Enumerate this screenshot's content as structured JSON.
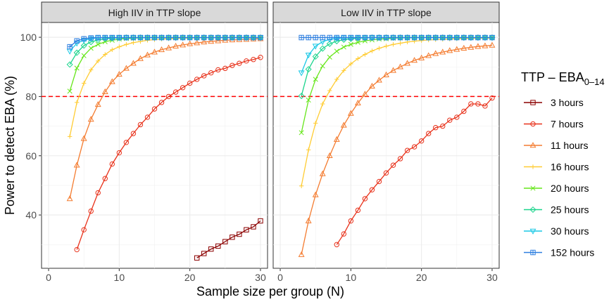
{
  "chart_data": {
    "type": "line",
    "ylabel": "Power to detect EBA (%)",
    "xlabel": "Sample size per group (N)",
    "xlim": [
      -1,
      31
    ],
    "ylim": [
      22,
      105
    ],
    "xticks": [
      0,
      10,
      20,
      30
    ],
    "xtick_labels": [
      "0",
      "10",
      "20",
      "30"
    ],
    "yticks": [
      40,
      60,
      80,
      100
    ],
    "ytick_labels": [
      "40",
      "60",
      "80",
      "100"
    ],
    "reference_line": {
      "y": 80,
      "color": "#ff0000",
      "style": "dashed"
    },
    "legend": {
      "title_main": "TTP – EBA",
      "title_sub": "0–14",
      "placement": "right"
    },
    "series_styles": [
      {
        "name": "3 hours",
        "color": "#8b0000",
        "marker": "square"
      },
      {
        "name": "7 hours",
        "color": "#e8311a",
        "marker": "circle"
      },
      {
        "name": "11 hours",
        "color": "#f47c30",
        "marker": "triangle"
      },
      {
        "name": "16 hours",
        "color": "#ffcc33",
        "marker": "plus"
      },
      {
        "name": "20 hours",
        "color": "#66e61a",
        "marker": "x"
      },
      {
        "name": "25 hours",
        "color": "#1ad48c",
        "marker": "diamond"
      },
      {
        "name": "30 hours",
        "color": "#1ac8e6",
        "marker": "triangle-down"
      },
      {
        "name": "152 hours",
        "color": "#2e7fe0",
        "marker": "boxplus"
      }
    ],
    "panels": [
      {
        "title": "High IIV in TTP slope",
        "series": [
          {
            "name": "3 hours",
            "x": [
              21,
              22,
              23,
              24,
              25,
              26,
              27,
              28,
              29,
              30
            ],
            "values": [
              25.5,
              27,
              28.5,
              29.5,
              31,
              32.5,
              33.5,
              35,
              36,
              38
            ]
          },
          {
            "name": "7 hours",
            "x": [
              4,
              5,
              6,
              7,
              8,
              9,
              10,
              11,
              12,
              13,
              14,
              15,
              16,
              17,
              18,
              19,
              20,
              21,
              22,
              23,
              24,
              25,
              26,
              27,
              28,
              29,
              30
            ],
            "values": [
              28.3,
              35,
              41.3,
              47.5,
              52.3,
              57.2,
              61,
              64.5,
              67.5,
              70.5,
              73,
              75.8,
              78,
              80,
              81.5,
              83,
              84.5,
              85.8,
              87,
              88,
              89,
              89.5,
              90.5,
              91.2,
              92,
              92.5,
              93.2
            ]
          },
          {
            "name": "11 hours",
            "x": [
              3,
              4,
              5,
              6,
              7,
              8,
              9,
              10,
              11,
              12,
              13,
              14,
              15,
              16,
              17,
              18,
              19,
              20,
              21,
              22,
              23,
              24,
              25,
              26,
              27,
              28,
              29,
              30
            ],
            "values": [
              45.5,
              56.8,
              65.8,
              72.3,
              77.3,
              81.6,
              85,
              87.5,
              89.5,
              91.2,
              92.8,
              94,
              95,
              95.8,
              96.4,
              97,
              97.4,
              97.8,
              98.1,
              98.4,
              98.6,
              98.8,
              99,
              99.1,
              99.2,
              99.3,
              99.4,
              99.5
            ]
          },
          {
            "name": "16 hours",
            "x": [
              3,
              4,
              5,
              6,
              7,
              8,
              9,
              10,
              11,
              12,
              13,
              14,
              15,
              16,
              17,
              18,
              19,
              20,
              21,
              22,
              23,
              24,
              25,
              26,
              27,
              28,
              29,
              30
            ],
            "values": [
              66.5,
              78,
              84.5,
              89,
              92,
              94.2,
              95.8,
              96.8,
              97.6,
              98.2,
              98.6,
              99,
              99.2,
              99.4,
              99.5,
              99.6,
              99.7,
              99.7,
              99.8,
              99.8,
              99.8,
              99.9,
              99.9,
              99.9,
              99.9,
              99.9,
              99.9,
              99.9
            ]
          },
          {
            "name": "20 hours",
            "x": [
              3,
              4,
              5,
              6,
              7,
              8,
              9,
              10,
              11,
              12,
              13,
              14,
              15,
              16,
              17,
              18,
              19,
              20,
              21,
              22,
              23,
              24,
              25,
              26,
              27,
              28,
              29,
              30
            ],
            "values": [
              81.8,
              89.6,
              93.8,
              96.3,
              97.6,
              98.5,
              99,
              99.4,
              99.6,
              99.7,
              99.8,
              99.9,
              99.9,
              99.9,
              99.9,
              99.9,
              99.9,
              99.9,
              99.9,
              99.9,
              99.9,
              99.9,
              99.9,
              99.9,
              99.9,
              99.9,
              99.9,
              99.9
            ]
          },
          {
            "name": "25 hours",
            "x": [
              3,
              4,
              5,
              6,
              7,
              8,
              9,
              10,
              11,
              12,
              13,
              14,
              15,
              16,
              17,
              18,
              19,
              20,
              21,
              22,
              23,
              24,
              25,
              26,
              27,
              28,
              29,
              30
            ],
            "values": [
              90.8,
              94.8,
              97.2,
              98.4,
              99.1,
              99.5,
              99.7,
              99.8,
              99.9,
              99.9,
              99.9,
              99.9,
              99.9,
              99.9,
              99.9,
              99.9,
              99.9,
              99.9,
              99.9,
              99.9,
              99.9,
              99.9,
              99.9,
              99.9,
              99.9,
              99.9,
              99.9,
              99.9
            ]
          },
          {
            "name": "30 hours",
            "x": [
              3,
              4,
              5,
              6,
              7,
              8,
              9,
              10,
              11,
              12,
              13,
              14,
              15,
              16,
              17,
              18,
              19,
              20,
              21,
              22,
              23,
              24,
              25,
              26,
              27,
              28,
              29,
              30
            ],
            "values": [
              95.3,
              98,
              99,
              99.5,
              99.8,
              99.9,
              99.9,
              99.9,
              99.9,
              99.9,
              99.9,
              99.9,
              99.9,
              99.9,
              99.9,
              99.9,
              99.9,
              99.9,
              99.9,
              99.9,
              99.9,
              99.9,
              99.9,
              99.9,
              99.9,
              99.9,
              99.9,
              99.9
            ]
          },
          {
            "name": "152 hours",
            "x": [
              3,
              4,
              5,
              6,
              7,
              8,
              9,
              10,
              11,
              12,
              13,
              14,
              15,
              16,
              17,
              18,
              19,
              20,
              21,
              22,
              23,
              24,
              25,
              26,
              27,
              28,
              29,
              30
            ],
            "values": [
              96.8,
              98.8,
              99.5,
              99.8,
              99.9,
              99.9,
              99.9,
              99.9,
              99.9,
              99.9,
              99.9,
              99.9,
              99.9,
              99.9,
              99.9,
              99.9,
              99.9,
              99.9,
              99.9,
              99.9,
              99.9,
              99.9,
              99.9,
              99.9,
              99.9,
              99.9,
              99.9,
              99.9
            ]
          }
        ]
      },
      {
        "title": "Low IIV in TTP slope",
        "series": [
          {
            "name": "7 hours",
            "x": [
              8,
              9,
              10,
              11,
              12,
              13,
              14,
              15,
              16,
              17,
              18,
              19,
              20,
              21,
              22,
              23,
              24,
              25,
              26,
              27,
              28,
              29,
              30
            ],
            "values": [
              30,
              33.6,
              38,
              41.6,
              45.5,
              48.5,
              51.3,
              54.2,
              56.8,
              59,
              61.8,
              63,
              65,
              67.5,
              69.5,
              70,
              72,
              73,
              75,
              77.5,
              77.5,
              76.8,
              79.5
            ]
          },
          {
            "name": "11 hours",
            "x": [
              3,
              4,
              5,
              6,
              7,
              8,
              9,
              10,
              11,
              12,
              13,
              14,
              15,
              16,
              17,
              18,
              19,
              20,
              21,
              22,
              23,
              24,
              25,
              26,
              27,
              28,
              29,
              30
            ],
            "values": [
              26.6,
              38,
              46.8,
              53.9,
              60,
              65.5,
              70.3,
              74.3,
              77.8,
              80.8,
              83.5,
              85.5,
              87.3,
              88.8,
              90,
              91.2,
              92.2,
              93,
              93.8,
              94.5,
              95,
              95.5,
              95.9,
              96.3,
              96.6,
              96.9,
              97.1,
              97.3
            ]
          },
          {
            "name": "16 hours",
            "x": [
              3,
              4,
              5,
              6,
              7,
              8,
              9,
              10,
              11,
              12,
              13,
              14,
              15,
              16,
              17,
              18,
              19,
              20,
              21,
              22,
              23,
              24,
              25,
              26,
              27,
              28,
              29,
              30
            ],
            "values": [
              49.8,
              62,
              71,
              77.5,
              82,
              85.8,
              88.8,
              91,
              92.8,
              94.2,
              95.4,
              96.3,
              97,
              97.6,
              98,
              98.4,
              98.7,
              98.9,
              99.1,
              99.2,
              99.3,
              99.4,
              99.5,
              99.6,
              99.6,
              99.7,
              99.7,
              99.7
            ]
          },
          {
            "name": "20 hours",
            "x": [
              3,
              4,
              5,
              6,
              7,
              8,
              9,
              10,
              11,
              12,
              13,
              14,
              15,
              16,
              17,
              18,
              19,
              20,
              21,
              22,
              23,
              24,
              25,
              26,
              27,
              28,
              29,
              30
            ],
            "values": [
              67.8,
              78.8,
              85.8,
              90.3,
              93.3,
              95.3,
              96.7,
              97.6,
              98.3,
              98.8,
              99.1,
              99.4,
              99.5,
              99.7,
              99.8,
              99.8,
              99.9,
              99.9,
              99.9,
              99.9,
              99.9,
              99.9,
              99.9,
              99.9,
              99.9,
              99.9,
              99.9,
              99.9
            ]
          },
          {
            "name": "25 hours",
            "x": [
              3,
              4,
              5,
              6,
              7,
              8,
              9,
              10,
              11,
              12,
              13,
              14,
              15,
              16,
              17,
              18,
              19,
              20,
              21,
              22,
              23,
              24,
              25,
              26,
              27,
              28,
              29,
              30
            ],
            "values": [
              80.2,
              89.2,
              93.5,
              96.2,
              97.8,
              98.7,
              99.2,
              99.5,
              99.7,
              99.8,
              99.9,
              99.9,
              99.9,
              99.9,
              99.9,
              99.9,
              99.9,
              99.9,
              99.9,
              99.9,
              99.9,
              99.9,
              99.9,
              99.9,
              99.9,
              99.9,
              99.9,
              99.9
            ]
          },
          {
            "name": "30 hours",
            "x": [
              3,
              4,
              5,
              6,
              7,
              8,
              9,
              10,
              11,
              12,
              13,
              14,
              15,
              16,
              17,
              18,
              19,
              20,
              21,
              22,
              23,
              24,
              25,
              26,
              27,
              28,
              29,
              30
            ],
            "values": [
              88,
              94,
              97,
              98.5,
              99.3,
              99.6,
              99.8,
              99.9,
              99.9,
              99.9,
              99.9,
              99.9,
              99.9,
              99.9,
              99.9,
              99.9,
              99.9,
              99.9,
              99.9,
              99.9,
              99.9,
              99.9,
              99.9,
              99.9,
              99.9,
              99.9,
              99.9,
              99.9
            ]
          },
          {
            "name": "152 hours",
            "x": [
              3,
              4,
              5,
              6,
              7,
              8,
              9,
              10,
              11,
              12,
              13,
              14,
              15,
              16,
              17,
              18,
              19,
              20,
              21,
              22,
              23,
              24,
              25,
              26,
              27,
              28,
              29,
              30
            ],
            "values": [
              99.9,
              99.9,
              99.9,
              99.9,
              99.9,
              99.9,
              99.9,
              99.9,
              99.9,
              99.9,
              99.9,
              99.9,
              99.9,
              99.9,
              99.9,
              99.9,
              99.9,
              99.9,
              99.9,
              99.9,
              99.9,
              99.9,
              99.9,
              99.9,
              99.9,
              99.9,
              99.9,
              99.9
            ]
          }
        ]
      }
    ]
  }
}
